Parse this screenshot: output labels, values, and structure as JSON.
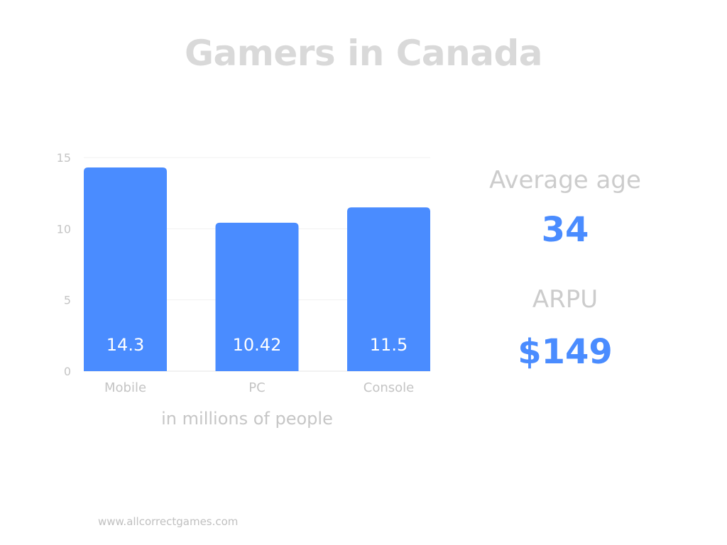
{
  "title": "Gamers in Canada",
  "chart_data": {
    "type": "bar",
    "categories": [
      "Mobile",
      "PC",
      "Console"
    ],
    "values": [
      14.3,
      10.42,
      11.5
    ],
    "data_labels": [
      "14.3",
      "10.42",
      "11.5"
    ],
    "y_ticks": [
      "0",
      "5",
      "10",
      "15"
    ],
    "ylim": [
      0,
      15
    ],
    "xlabel": "in millions of people",
    "ylabel": "",
    "grid": true,
    "bar_color": "#4a8cff"
  },
  "stats": {
    "average_age_label": "Average age",
    "average_age_value": "34",
    "arpu_label": "ARPU",
    "arpu_value": "$149"
  },
  "footer": "www.allcorrectgames.com"
}
